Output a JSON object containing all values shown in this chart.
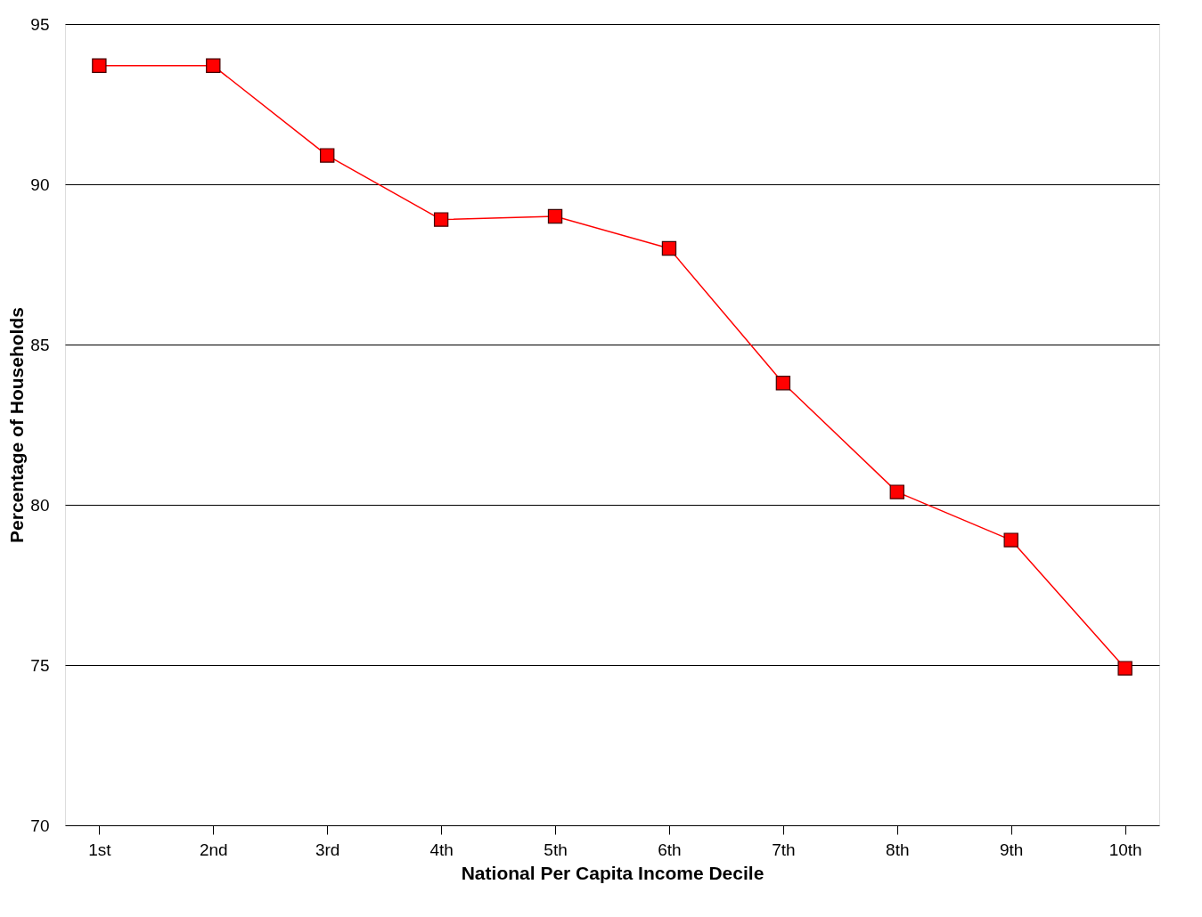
{
  "chart_data": {
    "type": "line",
    "xlabel": "National Per Capita Income Decile",
    "ylabel": "Percentage of Households",
    "categories": [
      "1st",
      "2nd",
      "3rd",
      "4th",
      "5th",
      "6th",
      "7th",
      "8th",
      "9th",
      "10th"
    ],
    "series": [
      {
        "color": "#ff0000",
        "values": [
          93.7,
          93.7,
          90.9,
          88.9,
          89.0,
          88.0,
          83.8,
          80.4,
          78.9,
          74.9
        ]
      }
    ],
    "ylim": [
      70,
      95
    ],
    "yticks": [
      70,
      75,
      80,
      85,
      90,
      95
    ],
    "grid": "y",
    "marker": "square",
    "line_style": "solid"
  }
}
